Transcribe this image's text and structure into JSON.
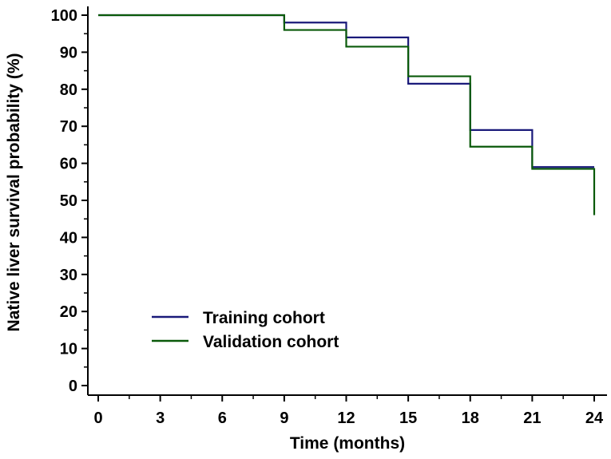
{
  "chart_data": {
    "type": "line",
    "title": "",
    "xlabel": "Time (months)",
    "ylabel": "Native liver survival probability (%)",
    "xlim": [
      0,
      24
    ],
    "ylim": [
      0,
      100
    ],
    "xticks": [
      0,
      3,
      6,
      9,
      12,
      15,
      18,
      21,
      24
    ],
    "yticks": [
      0,
      10,
      20,
      30,
      40,
      50,
      60,
      70,
      80,
      90,
      100
    ],
    "grid": false,
    "legend_position": "lower-left",
    "series": [
      {
        "name": "Training cohort",
        "color": "#1a1a7a",
        "step": true,
        "x": [
          0,
          9,
          12,
          15,
          18,
          21,
          24
        ],
        "values": [
          100,
          98,
          94,
          81.5,
          69,
          59,
          59
        ]
      },
      {
        "name": "Validation cohort",
        "color": "#0a5a0a",
        "step": true,
        "x": [
          0,
          9,
          12,
          15,
          18,
          21,
          24,
          24
        ],
        "values": [
          100,
          96,
          91.5,
          83.5,
          64.5,
          58.5,
          58.5,
          46
        ]
      }
    ]
  }
}
